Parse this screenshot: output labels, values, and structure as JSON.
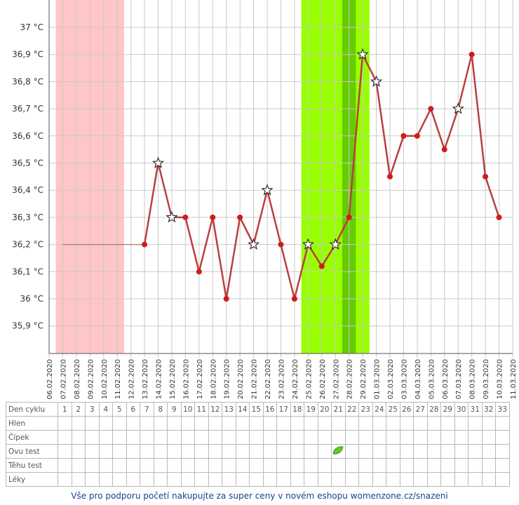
{
  "chart_data": {
    "type": "line",
    "ylabel_ticks": [
      "35,9 °C",
      "36 °C",
      "36,1 °C",
      "36,2 °C",
      "36,3 °C",
      "36,4 °C",
      "36,5 °C",
      "36,6 °C",
      "36,7 °C",
      "36,8 °C",
      "36,9 °C",
      "37 °C"
    ],
    "ylim": [
      35.8,
      37.1
    ],
    "x_dates": [
      "06.02.2020",
      "07.02.2020",
      "08.02.2020",
      "09.02.2020",
      "10.02.2020",
      "11.02.2020",
      "12.02.2020",
      "13.02.2020",
      "14.02.2020",
      "15.02.2020",
      "16.02.2020",
      "17.02.2020",
      "18.02.2020",
      "19.02.2020",
      "20.02.2020",
      "21.02.2020",
      "22.02.2020",
      "23.02.2020",
      "24.02.2020",
      "25.02.2020",
      "26.02.2020",
      "27.02.2020",
      "28.02.2020",
      "29.02.2020",
      "01.03.2020",
      "02.03.2020",
      "03.03.2020",
      "04.03.2020",
      "05.03.2020",
      "06.03.2020",
      "07.03.2020",
      "08.03.2020",
      "09.03.2020",
      "10.03.2020",
      "11.03.2020"
    ],
    "cycle_days": [
      1,
      2,
      3,
      4,
      5,
      6,
      7,
      8,
      9,
      10,
      11,
      12,
      13,
      14,
      15,
      16,
      17,
      18,
      19,
      20,
      21,
      22,
      23,
      24,
      25,
      26,
      27,
      28,
      29,
      30,
      31,
      32,
      33
    ],
    "temps": [
      null,
      null,
      null,
      null,
      null,
      null,
      36.2,
      36.5,
      36.3,
      36.3,
      36.1,
      36.3,
      36.0,
      36.3,
      36.2,
      36.4,
      36.2,
      36.0,
      36.2,
      36.12,
      36.2,
      36.3,
      36.9,
      36.8,
      36.45,
      36.6,
      36.6,
      36.7,
      36.55,
      36.7,
      36.9,
      36.45,
      36.3
    ],
    "star_days": [
      8,
      9,
      15,
      16,
      19,
      21,
      23,
      24,
      30
    ],
    "baseline_dashed": {
      "from_day": 1,
      "to_day": 7,
      "value": 36.2
    },
    "menstruation_days": [
      1,
      5
    ],
    "fertile_days": [
      19,
      23
    ],
    "peak_fertile_days": [
      22,
      22
    ],
    "colors": {
      "line": "#b8403f",
      "dot": "#d11b1b",
      "menstruation": "#ffc6c6",
      "fertile": "#99ff00",
      "peak": "#66cc00",
      "grid": "#c9c9c9"
    }
  },
  "table": {
    "rows": [
      "Den cyklu",
      "Hlen",
      "Čípek",
      "Ovu test",
      "Těhu test",
      "Léky"
    ],
    "ovu_test_day": 21
  },
  "footer": "Vše pro podporu početí nakupujte za super ceny v novém eshopu womenzone.cz/snazeni"
}
